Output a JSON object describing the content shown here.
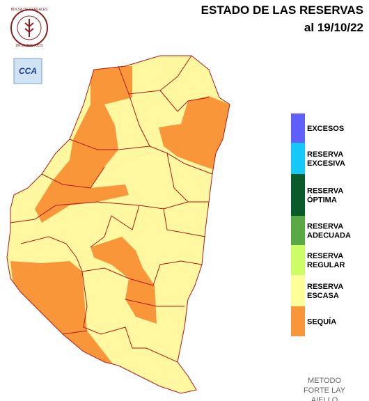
{
  "header": {
    "title": "ESTADO DE LAS RESERVAS",
    "date": "al 19/10/22"
  },
  "logo": {
    "ring_top": "BOLSA DE CEREALES",
    "ring_bottom": "DE ENTRE RIOS",
    "badge": "CCA"
  },
  "legend": {
    "items": [
      {
        "lines": [
          "EXCESOS"
        ],
        "color": "#6060ff"
      },
      {
        "lines": [
          "RESERVA",
          "EXCESIVA"
        ],
        "color": "#16c8f8"
      },
      {
        "lines": [
          "RESERVA",
          "ÓPTIMA"
        ],
        "color": "#0b5a2c"
      },
      {
        "lines": [
          "RESERVA",
          "ADECUADA"
        ],
        "color": "#5aa846"
      },
      {
        "lines": [
          "RESERVA",
          "REGULAR"
        ],
        "color": "#ccff66"
      },
      {
        "lines": [
          "RESERVA",
          "ESCASA"
        ],
        "color": "#ffff99"
      },
      {
        "lines": [
          "SEQUÍA"
        ],
        "color": "#f9963a"
      }
    ]
  },
  "footer": {
    "lines": [
      "METODO",
      "FORTE LAY",
      "AIELLO"
    ]
  }
}
